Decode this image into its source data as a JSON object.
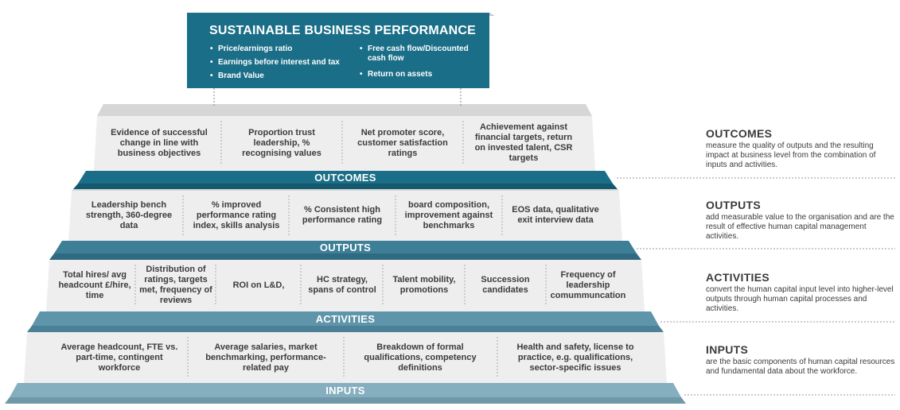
{
  "top": {
    "title": "SUSTAINABLE BUSINESS PERFORMANCE",
    "left_bullets": [
      "Price/earnings ratio",
      "Earnings before interest and tax",
      "Brand Value"
    ],
    "right_bullets": [
      "Free cash flow/Discounted cash flow",
      "Return on assets"
    ]
  },
  "outcomes": {
    "label": "OUTCOMES",
    "cells": [
      "Evidence of successful change in line with business objectives",
      "Proportion trust leadership, % recognising values",
      "Net promoter score, customer satisfaction ratings",
      "Achievement against financial targets, return on invested talent, CSR targets"
    ]
  },
  "outputs": {
    "label": "OUTPUTS",
    "cells": [
      "Leadership bench strength, 360-degree data",
      "% improved performance rating index, skills analysis",
      "% Consistent high performance rating",
      "board composition, improvement against benchmarks",
      "EOS data, qualitative exit interview data"
    ]
  },
  "activities": {
    "label": "ACTIVITIES",
    "cells": [
      "Total hires/ avg headcount £/hire, time",
      "Distribution of ratings, targets met, frequency of reviews",
      "ROI on L&D,",
      "HC strategy, spans of control",
      "Talent mobility, promotions",
      "Succession candidates",
      "Frequency of leadership comummuncation"
    ]
  },
  "inputs": {
    "label": "INPUTS",
    "cells": [
      "Average headcount, FTE vs. part-time, contingent workforce",
      "Average salaries, market benchmarking, performance-related pay",
      "Breakdown of formal qualifications, competency definitions",
      "Health and safety, license to practice, e.g. qualifications, sector-specific issues"
    ]
  },
  "side": [
    {
      "title": "OUTCOMES",
      "desc": "measure the quality of outputs and the resulting impact at business level from the combination of inputs and activities."
    },
    {
      "title": "OUTPUTS",
      "desc": "add measurable value to the organisation and are the result of effective human capital management activities."
    },
    {
      "title": "ACTIVITIES",
      "desc": "convert the human capital input level into higher-level outputs through human capital processes and activities."
    },
    {
      "title": "INPUTS",
      "desc": "are the basic components of human capital resources and fundamental data about the workforce."
    }
  ],
  "colors": {
    "top_box": "#1a6e88",
    "band_outcomes": "#1a6e88",
    "band_outputs": "#3d7f97",
    "band_activities": "#5f95aa",
    "band_inputs": "#85aebe",
    "tier_fill": "#eeeeee",
    "tier_top": "#d9d9d9"
  }
}
